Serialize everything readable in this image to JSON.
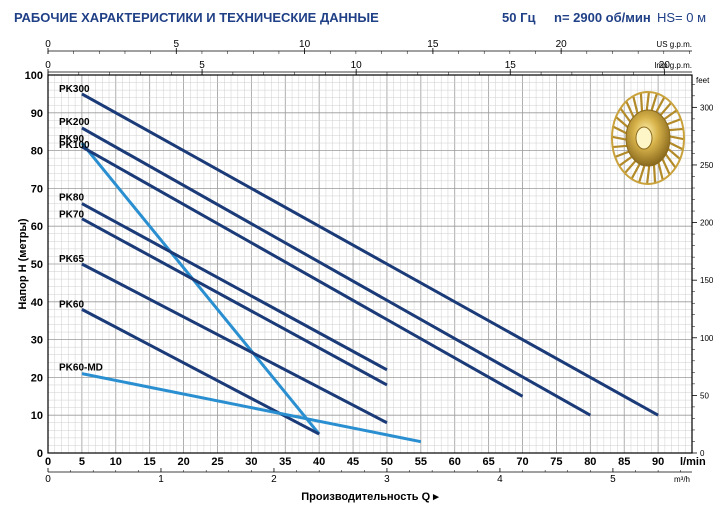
{
  "header": {
    "title": "РАБОЧИЕ ХАРАКТЕРИСТИКИ И ТЕХНИЧЕСКИЕ ДАННЫЕ",
    "frequency": "50 Гц",
    "speed": "n= 2900 об/мин",
    "hs": "HS= 0 м"
  },
  "chart_data": {
    "type": "line",
    "title": "",
    "xlabel": "Производительность Q ▸",
    "ylabel": "Напор H (метры)",
    "xlim": [
      0,
      95
    ],
    "ylim": [
      0,
      100
    ],
    "grid": true,
    "x_unit_label": "l/min",
    "x_ticks": [
      5,
      10,
      15,
      20,
      25,
      30,
      35,
      40,
      45,
      50,
      55,
      60,
      65,
      70,
      75,
      80,
      85,
      90
    ],
    "y_ticks": [
      0,
      10,
      20,
      30,
      40,
      50,
      60,
      70,
      80,
      90,
      100
    ],
    "secondary_axes": {
      "us_gpm": {
        "label": "US g.p.m.",
        "ticks": [
          0,
          5,
          10,
          15,
          20
        ]
      },
      "imp_gpm": {
        "label": "Imp g.p.m.",
        "ticks": [
          0,
          5,
          10,
          15,
          20
        ]
      },
      "m3h": {
        "label": "m³/h",
        "ticks": [
          0,
          1,
          2,
          3,
          4,
          5
        ]
      },
      "feet": {
        "label": "feet",
        "ticks": [
          0,
          50,
          100,
          150,
          200,
          250,
          300
        ]
      }
    },
    "series": [
      {
        "name": "PK300",
        "color": "#1a3a78",
        "points": [
          [
            5,
            95
          ],
          [
            90,
            10
          ]
        ]
      },
      {
        "name": "PK200",
        "color": "#1a3a78",
        "points": [
          [
            5,
            86
          ],
          [
            80,
            10
          ]
        ]
      },
      {
        "name": "PK90",
        "color": "#2a8fd0",
        "points": [
          [
            5,
            82
          ],
          [
            40,
            5
          ]
        ]
      },
      {
        "name": "PK100",
        "color": "#1a3a78",
        "points": [
          [
            5,
            81
          ],
          [
            70,
            15
          ]
        ]
      },
      {
        "name": "PK80",
        "color": "#1a3a78",
        "points": [
          [
            5,
            66
          ],
          [
            50,
            22
          ]
        ]
      },
      {
        "name": "PK70",
        "color": "#1a3a78",
        "points": [
          [
            5,
            62
          ],
          [
            50,
            18
          ]
        ]
      },
      {
        "name": "PK65",
        "color": "#1a3a78",
        "points": [
          [
            5,
            50
          ],
          [
            50,
            8
          ]
        ]
      },
      {
        "name": "PK60",
        "color": "#1a3a78",
        "points": [
          [
            5,
            38
          ],
          [
            40,
            5
          ]
        ]
      },
      {
        "name": "PK60-MD",
        "color": "#2a8fd0",
        "points": [
          [
            5,
            21
          ],
          [
            55,
            3
          ]
        ]
      }
    ],
    "curve_labels": [
      "PK300",
      "PK200",
      "PK90",
      "PK100",
      "PK80",
      "PK70",
      "PK65",
      "PK60",
      "PK60-MD"
    ]
  },
  "icons": {
    "impeller": "impeller-icon"
  }
}
